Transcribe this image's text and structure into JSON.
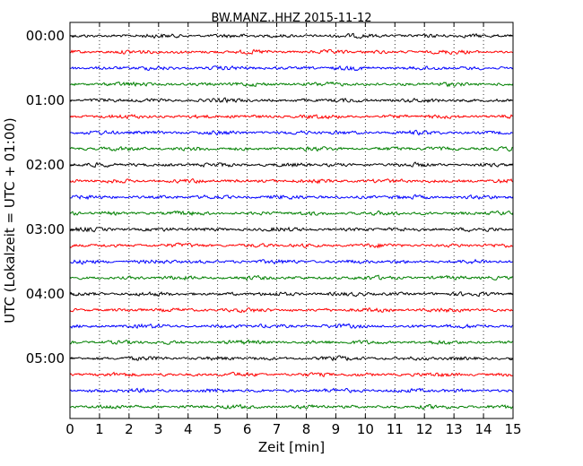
{
  "chart_data": {
    "type": "line",
    "title": "BW.MANZ..HHZ 2015-11-12",
    "xlabel": "Zeit  [min]",
    "ylabel": "UTC (Lokalzeit = UTC + 01:00)",
    "xlim": [
      0,
      15
    ],
    "x_ticks": [
      "0",
      "1",
      "2",
      "3",
      "4",
      "5",
      "6",
      "7",
      "8",
      "9",
      "10",
      "11",
      "12",
      "13",
      "14",
      "15"
    ],
    "y_ticks": [
      "00:00",
      "01:00",
      "02:00",
      "03:00",
      "04:00",
      "05:00"
    ],
    "grid": "vertical-dotted",
    "trace_interval_min": 15,
    "trace_count": 24,
    "trace_colors": [
      "#000000",
      "#ff0000",
      "#0000ff",
      "#008000"
    ]
  }
}
